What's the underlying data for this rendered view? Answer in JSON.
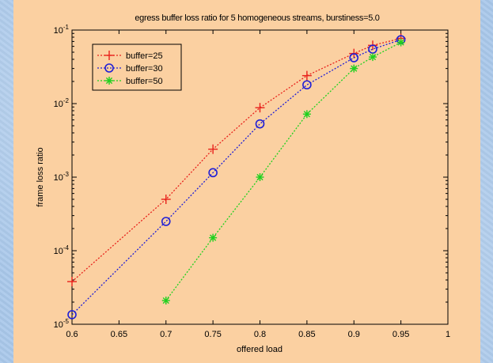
{
  "chart_data": {
    "type": "line",
    "title": "egress buffer loss ratio for 5 homogeneous streams, burstiness=5.0",
    "xlabel": "offered load",
    "ylabel": "frame loss ratio",
    "xlim": [
      0.6,
      1.0
    ],
    "ylim": [
      1e-05,
      0.1
    ],
    "yscale": "log",
    "grid": false,
    "legend_position": "top-left",
    "x_ticks": [
      "0.6",
      "0.65",
      "0.7",
      "0.75",
      "0.8",
      "0.85",
      "0.9",
      "0.95",
      "1"
    ],
    "y_ticks": [
      {
        "base": "10",
        "exp": "-1",
        "value": 0.1
      },
      {
        "base": "10",
        "exp": "-2",
        "value": 0.01
      },
      {
        "base": "10",
        "exp": "-3",
        "value": 0.001
      },
      {
        "base": "10",
        "exp": "-4",
        "value": 0.0001
      },
      {
        "base": "10",
        "exp": "-5",
        "value": 1e-05
      }
    ],
    "series": [
      {
        "name": "buffer=25",
        "color": "#e8221c",
        "marker": "plus",
        "x": [
          0.6,
          0.7,
          0.75,
          0.8,
          0.85,
          0.9,
          0.92,
          0.95
        ],
        "y": [
          3.8e-05,
          0.0005,
          0.0024,
          0.0088,
          0.024,
          0.048,
          0.062,
          0.077
        ]
      },
      {
        "name": "buffer=30",
        "color": "#1f1fd6",
        "marker": "circle",
        "x": [
          0.6,
          0.7,
          0.75,
          0.8,
          0.85,
          0.9,
          0.92,
          0.95
        ],
        "y": [
          1.35e-05,
          0.00025,
          0.00115,
          0.0053,
          0.018,
          0.042,
          0.055,
          0.074
        ]
      },
      {
        "name": "buffer=50",
        "color": "#1ed11e",
        "marker": "star",
        "x": [
          0.7,
          0.75,
          0.8,
          0.85,
          0.9,
          0.92,
          0.95
        ],
        "y": [
          2.1e-05,
          0.00015,
          0.001,
          0.0072,
          0.03,
          0.043,
          0.068
        ]
      }
    ]
  }
}
